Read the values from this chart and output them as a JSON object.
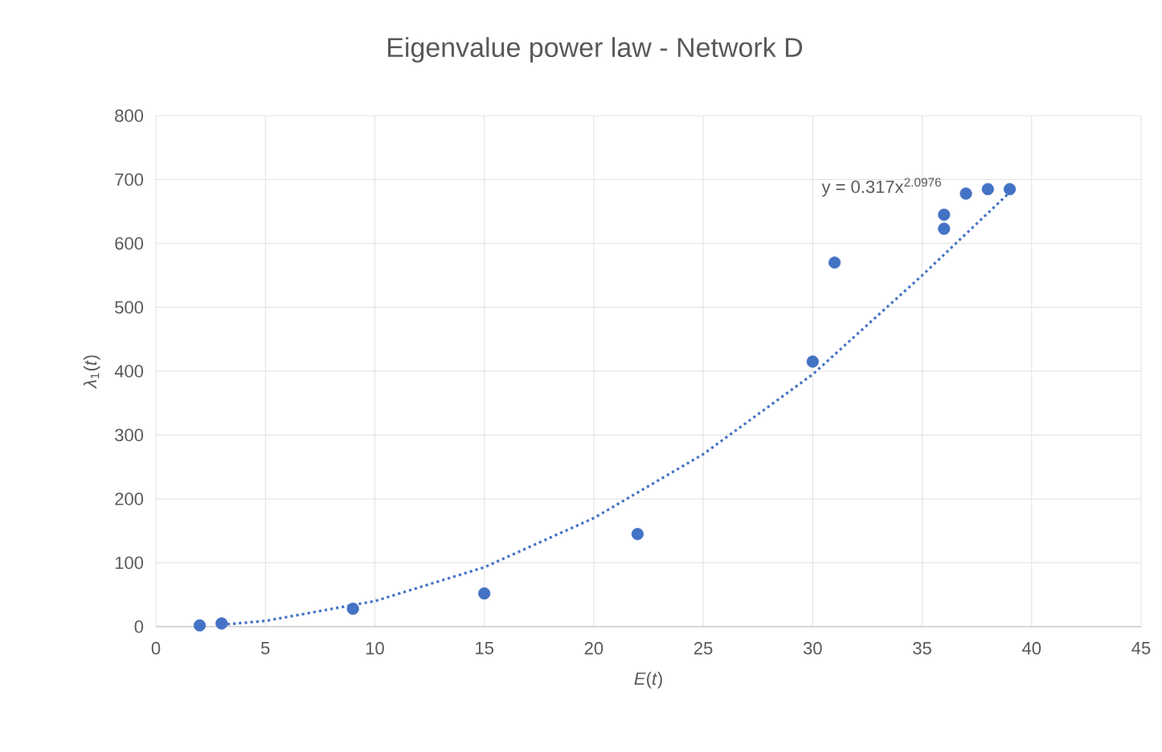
{
  "chart_data": {
    "type": "scatter",
    "title": "Eigenvalue power law - Network D",
    "xlabel": "*E*(*t*)",
    "ylabel": "*λ*$_{1}$(*t*)",
    "annotations": [
      "y = 0.317x$^{2.0976}$"
    ],
    "series": [
      {
        "color": "#4472c4",
        "marker": "circle",
        "x": [
          2,
          3,
          9,
          15,
          22,
          30,
          31,
          36,
          36,
          37,
          38,
          39
        ],
        "values": [
          2,
          5,
          28,
          52,
          145,
          415,
          570,
          645,
          623,
          678,
          685,
          685
        ]
      },
      {
        "type": "line",
        "color": "#4472c4",
        "line_style": "dotted",
        "marker": "none",
        "x": [
          3,
          5,
          10,
          15,
          20,
          25,
          30,
          35,
          39
        ],
        "values": [
          3,
          9,
          40,
          93,
          170,
          270,
          395,
          550,
          680
        ]
      }
    ],
    "xlim": [
      0,
      45
    ],
    "ylim": [
      0,
      800
    ],
    "xticks": [
      0,
      5,
      10,
      15,
      20,
      25,
      30,
      35,
      40,
      45
    ],
    "yticks": [
      0,
      100,
      200,
      300,
      400,
      500,
      600,
      700,
      800
    ],
    "grid": true
  }
}
